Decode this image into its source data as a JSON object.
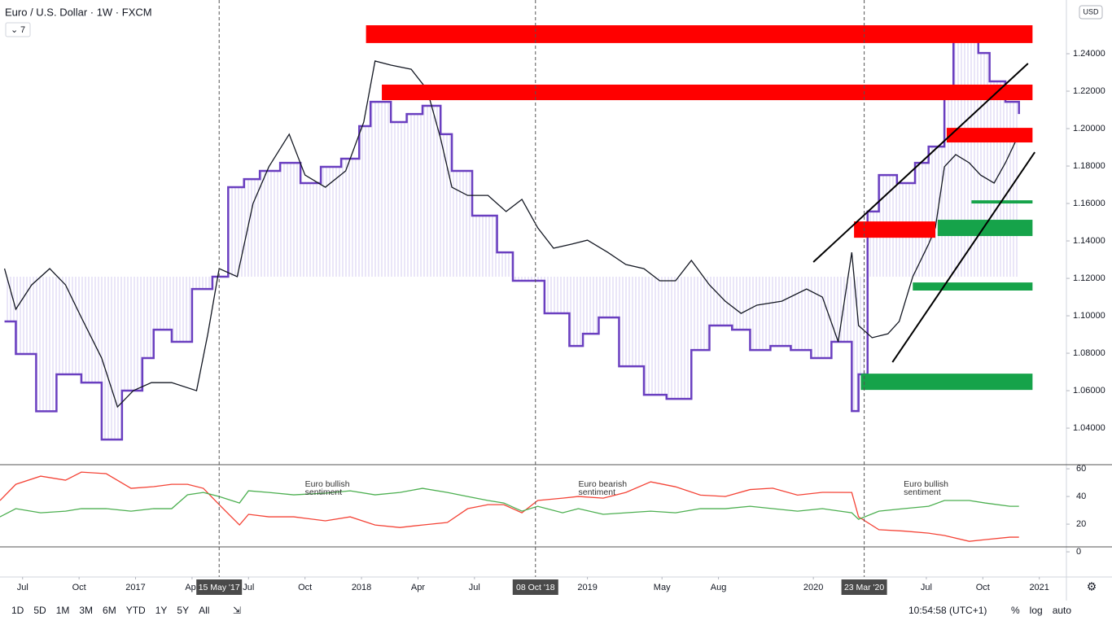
{
  "header": {
    "title": "Euro / U.S. Dollar · 1W · FXCM",
    "indicator_count": "7",
    "currency": "USD"
  },
  "toolbar": {
    "ranges": [
      "1D",
      "5D",
      "1M",
      "3M",
      "6M",
      "YTD",
      "1Y",
      "5Y",
      "All"
    ],
    "clock": "10:54:58 (UTC+1)",
    "options": [
      "%",
      "log",
      "auto"
    ]
  },
  "chart_data": [
    {
      "type": "line",
      "xlim": [
        2016.4,
        2021.12
      ],
      "ylim": [
        1.0209,
        1.2687
      ],
      "yticks": [
        {
          "value": 1.04,
          "label": "1.04000"
        },
        {
          "value": 1.06,
          "label": "1.06000"
        },
        {
          "value": 1.08,
          "label": "1.08000"
        },
        {
          "value": 1.1,
          "label": "1.10000"
        },
        {
          "value": 1.12,
          "label": "1.12000"
        },
        {
          "value": 1.14,
          "label": "1.14000"
        },
        {
          "value": 1.16,
          "label": "1.16000"
        },
        {
          "value": 1.18,
          "label": "1.18000"
        },
        {
          "value": 1.2,
          "label": "1.20000"
        },
        {
          "value": 1.22,
          "label": "1.22000"
        },
        {
          "value": 1.24,
          "label": "1.24000"
        }
      ],
      "xticks": [
        {
          "value": 2016.5,
          "label": "Jul"
        },
        {
          "value": 2016.75,
          "label": "Oct"
        },
        {
          "value": 2017,
          "label": "2017"
        },
        {
          "value": 2017.25,
          "label": "Apr"
        },
        {
          "value": 2017.5,
          "label": "Jul"
        },
        {
          "value": 2017.75,
          "label": "Oct"
        },
        {
          "value": 2018,
          "label": "2018"
        },
        {
          "value": 2018.25,
          "label": "Apr"
        },
        {
          "value": 2018.5,
          "label": "Jul"
        },
        {
          "value": 2019,
          "label": "2019"
        },
        {
          "value": 2019.33,
          "label": "May"
        },
        {
          "value": 2019.58,
          "label": "Aug"
        },
        {
          "value": 2020,
          "label": "2020"
        },
        {
          "value": 2020.5,
          "label": "Jul"
        },
        {
          "value": 2020.75,
          "label": "Oct"
        },
        {
          "value": 2021,
          "label": "2021"
        }
      ],
      "event_lines": [
        {
          "value": 2017.37,
          "label": "15 May '17"
        },
        {
          "value": 2018.77,
          "label": "08 Oct '18"
        },
        {
          "value": 2020.225,
          "label": "23 Mar '20"
        }
      ],
      "series": [
        {
          "color": "#6a3fc0",
          "style": "step",
          "fill_to": 1.1209,
          "fill": "#d8cff0",
          "x": [
            2016.42,
            2016.47,
            2016.56,
            2016.65,
            2016.76,
            2016.85,
            2016.94,
            2017.03,
            2017.08,
            2017.16,
            2017.25,
            2017.34,
            2017.41,
            2017.48,
            2017.55,
            2017.64,
            2017.73,
            2017.82,
            2017.91,
            2017.99,
            2018.04,
            2018.13,
            2018.2,
            2018.27,
            2018.35,
            2018.4,
            2018.49,
            2018.6,
            2018.67,
            2018.76,
            2018.81,
            2018.92,
            2018.98,
            2019.05,
            2019.14,
            2019.25,
            2019.35,
            2019.46,
            2019.54,
            2019.64,
            2019.72,
            2019.81,
            2019.9,
            2019.99,
            2020.08,
            2020.17,
            2020.2,
            2020.24,
            2020.29,
            2020.37,
            2020.45,
            2020.51,
            2020.58,
            2020.62,
            2020.67,
            2020.73,
            2020.78,
            2020.85,
            2020.91
          ],
          "values": [
            1.097,
            1.0796,
            1.049,
            1.0687,
            1.0643,
            1.0339,
            1.06,
            1.0774,
            1.0926,
            1.0861,
            1.1143,
            1.1209,
            1.1687,
            1.173,
            1.1774,
            1.1817,
            1.1709,
            1.1796,
            1.1839,
            1.2013,
            1.2143,
            1.2035,
            1.2078,
            1.2122,
            1.197,
            1.1774,
            1.1535,
            1.1339,
            1.1187,
            1.1187,
            1.1013,
            1.0839,
            1.0904,
            1.0991,
            1.073,
            1.0578,
            1.0556,
            1.0817,
            1.0948,
            1.0926,
            1.0817,
            1.0839,
            1.0817,
            1.0774,
            1.0861,
            1.0491,
            1.0687,
            1.1557,
            1.1752,
            1.1709,
            1.1817,
            1.1904,
            1.2165,
            1.247,
            1.2535,
            1.2404,
            1.2252,
            1.2143,
            1.2078
          ]
        },
        {
          "color": "#131722",
          "style": "line",
          "x": [
            2016.42,
            2016.47,
            2016.54,
            2016.62,
            2016.69,
            2016.76,
            2016.85,
            2016.92,
            2016.99,
            2017.07,
            2017.16,
            2017.27,
            2017.32,
            2017.37,
            2017.45,
            2017.52,
            2017.59,
            2017.68,
            2017.75,
            2017.84,
            2017.93,
            2018.01,
            2018.06,
            2018.13,
            2018.22,
            2018.29,
            2018.35,
            2018.4,
            2018.47,
            2018.56,
            2018.64,
            2018.71,
            2018.78,
            2018.85,
            2018.93,
            2019.0,
            2019.09,
            2019.17,
            2019.25,
            2019.32,
            2019.39,
            2019.46,
            2019.54,
            2019.61,
            2019.68,
            2019.75,
            2019.86,
            2019.97,
            2020.04,
            2020.11,
            2020.17,
            2020.2,
            2020.26,
            2020.33,
            2020.38,
            2020.44,
            2020.51,
            2020.54,
            2020.58,
            2020.63,
            2020.69,
            2020.74,
            2020.8,
            2020.85,
            2020.91
          ],
          "values": [
            1.1252,
            1.1035,
            1.1165,
            1.1252,
            1.1165,
            1.0991,
            1.0774,
            1.0513,
            1.06,
            1.0643,
            1.0643,
            1.06,
            1.0904,
            1.1252,
            1.1209,
            1.16,
            1.1796,
            1.197,
            1.1752,
            1.1687,
            1.1774,
            1.2035,
            1.2361,
            1.2339,
            1.2317,
            1.2209,
            1.1948,
            1.1687,
            1.1643,
            1.1643,
            1.1557,
            1.1622,
            1.147,
            1.1361,
            1.1383,
            1.1404,
            1.1339,
            1.1274,
            1.1252,
            1.1187,
            1.1187,
            1.1296,
            1.1165,
            1.1078,
            1.1013,
            1.1057,
            1.1078,
            1.1143,
            1.11,
            1.0861,
            1.1339,
            1.0948,
            1.0883,
            1.0904,
            1.097,
            1.1209,
            1.1383,
            1.147,
            1.1796,
            1.1861,
            1.1817,
            1.1752,
            1.1709,
            1.1817,
            1.197
          ]
        }
      ],
      "zones": [
        {
          "x": [
            2018.02,
            2020.97
          ],
          "y": [
            1.2457,
            1.2552
          ],
          "color": "#ff0000"
        },
        {
          "x": [
            2018.09,
            2020.97
          ],
          "y": [
            1.2152,
            1.2235
          ],
          "color": "#ff0000"
        },
        {
          "x": [
            2020.59,
            2020.97
          ],
          "y": [
            1.1926,
            1.2004
          ],
          "color": "#ff0000"
        },
        {
          "x": [
            2020.18,
            2020.54
          ],
          "y": [
            1.1417,
            1.1504
          ],
          "color": "#ff0000"
        },
        {
          "x": [
            2020.55,
            2020.97
          ],
          "y": [
            1.1426,
            1.1513
          ],
          "color": "#16a34a"
        },
        {
          "x": [
            2020.7,
            2020.97
          ],
          "y": [
            1.16,
            1.1617
          ],
          "color": "#16a34a"
        },
        {
          "x": [
            2020.44,
            2020.97
          ],
          "y": [
            1.1135,
            1.1178
          ],
          "color": "#16a34a"
        },
        {
          "x": [
            2020.21,
            2020.97
          ],
          "y": [
            1.0604,
            1.0691
          ],
          "color": "#16a34a"
        }
      ],
      "trendlines": [
        {
          "x": [
            2020.0,
            2020.95
          ],
          "y": [
            1.1287,
            1.2348
          ]
        },
        {
          "x": [
            2020.35,
            2020.98
          ],
          "y": [
            1.0752,
            1.1874
          ]
        }
      ]
    },
    {
      "type": "line",
      "xlim": [
        2016.4,
        2021.12
      ],
      "ylim": [
        -17.6,
        62.4
      ],
      "yticks": [
        0,
        20,
        40,
        60
      ],
      "x": [
        2016.4,
        2016.47,
        2016.58,
        2016.69,
        2016.76,
        2016.87,
        2016.98,
        2017.08,
        2017.16,
        2017.23,
        2017.3,
        2017.37,
        2017.46,
        2017.5,
        2017.59,
        2017.7,
        2017.84,
        2017.95,
        2018.06,
        2018.17,
        2018.27,
        2018.38,
        2018.47,
        2018.56,
        2018.63,
        2018.71,
        2018.78,
        2018.89,
        2018.96,
        2019.07,
        2019.17,
        2019.28,
        2019.39,
        2019.5,
        2019.61,
        2019.72,
        2019.82,
        2019.93,
        2020.04,
        2020.17,
        2020.2,
        2020.29,
        2020.4,
        2020.51,
        2020.58,
        2020.69,
        2020.76,
        2020.87,
        2020.91
      ],
      "series": [
        {
          "color": "#f44336",
          "values": [
            37.1,
            48.8,
            54.7,
            51.8,
            57.6,
            56.5,
            45.9,
            47.1,
            48.8,
            48.8,
            45.9,
            34.1,
            19.4,
            27.1,
            25.3,
            25.3,
            22.4,
            25.3,
            19.4,
            17.6,
            19.4,
            21.2,
            31.2,
            34.1,
            34.1,
            28.2,
            37.1,
            38.8,
            40,
            38.8,
            42.9,
            50.6,
            47,
            41,
            40,
            45,
            46,
            41,
            43,
            42.9,
            25.3,
            16,
            15,
            13.5,
            11.8,
            7.6,
            8.8,
            10.6,
            10.6
          ]
        },
        {
          "color": "#4caf50",
          "values": [
            25.3,
            31.2,
            28.2,
            29.4,
            31.2,
            31.2,
            29.4,
            31.2,
            31.2,
            41.2,
            42.9,
            40,
            35.3,
            44.1,
            42.9,
            41.2,
            42.4,
            44.1,
            41.2,
            42.9,
            45.9,
            42.9,
            40,
            37.1,
            35.3,
            29.4,
            32.9,
            28.2,
            31.2,
            27.1,
            28.2,
            29.4,
            28.2,
            31.2,
            31.2,
            32.9,
            31.2,
            29.4,
            31.2,
            28.2,
            23.5,
            29.4,
            31.2,
            32.9,
            37.1,
            37.1,
            35.3,
            32.9,
            32.9
          ]
        }
      ],
      "annotations": [
        {
          "x": 2017.75,
          "y": 49,
          "lines": [
            "Euro bullish",
            "sentiment"
          ]
        },
        {
          "x": 2018.96,
          "y": 49,
          "lines": [
            "Euro bearish",
            "sentiment"
          ]
        },
        {
          "x": 2020.4,
          "y": 49,
          "lines": [
            "Euro bullish",
            "sentiment"
          ]
        }
      ]
    }
  ]
}
